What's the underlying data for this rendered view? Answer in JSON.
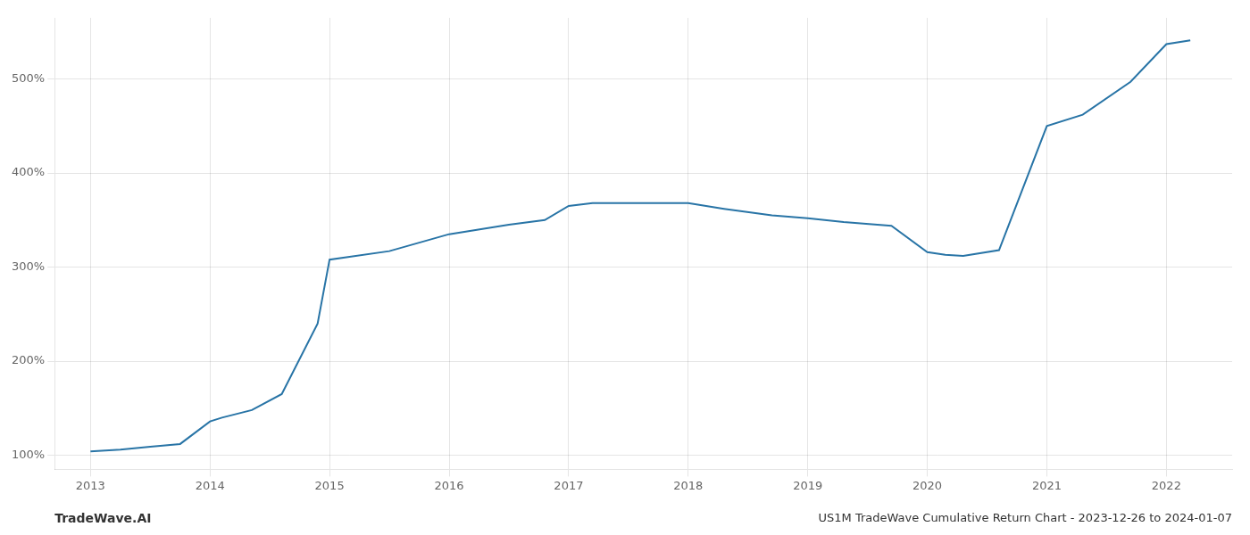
{
  "chart_data": {
    "type": "line",
    "title": "US1M TradeWave Cumulative Return Chart - 2023-12-26 to 2024-01-07",
    "annotations": [
      "TradeWave.AI"
    ],
    "x": [
      2013.0,
      2013.25,
      2013.5,
      2013.75,
      2014.0,
      2014.1,
      2014.35,
      2014.6,
      2014.9,
      2015.0,
      2015.5,
      2016.0,
      2016.5,
      2016.8,
      2017.0,
      2017.2,
      2017.5,
      2018.0,
      2018.3,
      2018.7,
      2019.0,
      2019.3,
      2019.7,
      2020.0,
      2020.15,
      2020.3,
      2020.6,
      2021.0,
      2021.3,
      2021.7,
      2022.0,
      2022.2
    ],
    "values": [
      104,
      106,
      109,
      112,
      136,
      140,
      148,
      165,
      240,
      308,
      317,
      335,
      345,
      350,
      365,
      368,
      368,
      368,
      362,
      355,
      352,
      348,
      344,
      316,
      313,
      312,
      318,
      450,
      462,
      497,
      537,
      541
    ],
    "color": "#2874a6",
    "xlim": [
      2012.7,
      2022.55
    ],
    "xticks": [
      2013,
      2014,
      2015,
      2016,
      2017,
      2018,
      2019,
      2020,
      2021,
      2022
    ],
    "ylim": [
      85,
      565
    ],
    "yticks": [
      {
        "value": 100,
        "label": "100%"
      },
      {
        "value": 200,
        "label": "200%"
      },
      {
        "value": 300,
        "label": "300%"
      },
      {
        "value": 400,
        "label": "400%"
      },
      {
        "value": 500,
        "label": "500%"
      }
    ],
    "grid": true
  }
}
